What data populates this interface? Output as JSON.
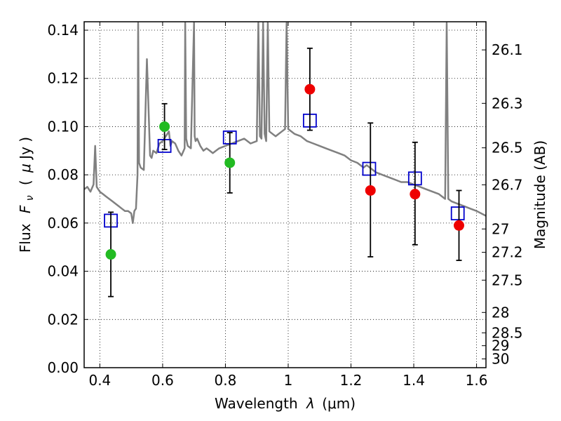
{
  "chart_data": {
    "type": "scatter",
    "title": "",
    "xlabel": "Wavelength  λ (μm)",
    "ylabel": "Flux  F_ν  ( μJy )",
    "ylabel_parts": {
      "flux": "Flux",
      "fnu_main": "F",
      "fnu_sub": "ν",
      "paren_open": "(",
      "mu": "μ",
      "jy": "Jy )"
    },
    "xlabel_parts": {
      "text": "Wavelength",
      "lambda": "λ",
      "unit": "(μm)"
    },
    "y2label": "Magnitude (AB)",
    "xlim": [
      0.35,
      1.63
    ],
    "ylim": [
      0.0,
      0.1435
    ],
    "grid": true,
    "x_ticks": [
      0.4,
      0.6,
      0.8,
      1.0,
      1.2,
      1.4,
      1.6
    ],
    "x_tick_labels": [
      "0.4",
      "0.6",
      "0.8",
      "1",
      "1.2",
      "1.4",
      "1.6"
    ],
    "y_ticks": [
      0.0,
      0.02,
      0.04,
      0.06,
      0.08,
      0.1,
      0.12,
      0.14
    ],
    "y_tick_labels": [
      "0.00",
      "0.02",
      "0.04",
      "0.06",
      "0.08",
      "0.10",
      "0.12",
      "0.14"
    ],
    "y2_tick_labels": [
      "26.1",
      "26.3",
      "26.5",
      "26.7",
      "27",
      "27.2",
      "27.5",
      "28",
      "28.5",
      "29",
      "30"
    ],
    "colors": {
      "template": "#808080",
      "green": "#22bb22",
      "red": "#ee0000",
      "model_box": "#0000cc",
      "errorbar": "#000000",
      "grid": "#000000"
    },
    "series": [
      {
        "marker": "circle-green",
        "points": [
          {
            "x": 0.435,
            "y": 0.047,
            "yerr_low": 0.0295,
            "yerr_high": 0.0645
          },
          {
            "x": 0.606,
            "y": 0.1,
            "yerr_low": 0.0905,
            "yerr_high": 0.1095
          },
          {
            "x": 0.814,
            "y": 0.085,
            "yerr_low": 0.0725,
            "yerr_high": 0.0975
          }
        ]
      },
      {
        "marker": "circle-red",
        "points": [
          {
            "x": 1.069,
            "y": 0.1155,
            "yerr_low": 0.0985,
            "yerr_high": 0.1325
          },
          {
            "x": 1.262,
            "y": 0.0735,
            "yerr_low": 0.046,
            "yerr_high": 0.1015
          },
          {
            "x": 1.404,
            "y": 0.072,
            "yerr_low": 0.051,
            "yerr_high": 0.0935
          },
          {
            "x": 1.544,
            "y": 0.059,
            "yerr_low": 0.0445,
            "yerr_high": 0.0735
          }
        ]
      },
      {
        "marker": "square-open-blue",
        "points": [
          {
            "x": 0.435,
            "y": 0.061
          },
          {
            "x": 0.606,
            "y": 0.092
          },
          {
            "x": 0.814,
            "y": 0.0955
          },
          {
            "x": 1.069,
            "y": 0.1025
          },
          {
            "x": 1.258,
            "y": 0.0825
          },
          {
            "x": 1.404,
            "y": 0.0785
          },
          {
            "x": 1.54,
            "y": 0.064
          }
        ]
      },
      {
        "marker": "line-template",
        "x": [
          0.35,
          0.36,
          0.37,
          0.38,
          0.385,
          0.39,
          0.395,
          0.4,
          0.41,
          0.42,
          0.43,
          0.44,
          0.45,
          0.46,
          0.47,
          0.48,
          0.49,
          0.5,
          0.505,
          0.51,
          0.515,
          0.52,
          0.522,
          0.525,
          0.53,
          0.54,
          0.55,
          0.56,
          0.565,
          0.57,
          0.58,
          0.59,
          0.6,
          0.61,
          0.62,
          0.625,
          0.63,
          0.64,
          0.65,
          0.66,
          0.67,
          0.672,
          0.675,
          0.68,
          0.69,
          0.7,
          0.702,
          0.705,
          0.71,
          0.72,
          0.73,
          0.74,
          0.75,
          0.76,
          0.77,
          0.78,
          0.8,
          0.82,
          0.84,
          0.86,
          0.88,
          0.9,
          0.905,
          0.91,
          0.915,
          0.92,
          0.925,
          0.93,
          0.935,
          0.94,
          0.95,
          0.96,
          0.97,
          0.98,
          0.99,
          0.995,
          1.0,
          1.02,
          1.04,
          1.06,
          1.08,
          1.1,
          1.12,
          1.14,
          1.16,
          1.18,
          1.2,
          1.22,
          1.24,
          1.25,
          1.26,
          1.28,
          1.3,
          1.32,
          1.34,
          1.36,
          1.38,
          1.4,
          1.42,
          1.44,
          1.46,
          1.48,
          1.5,
          1.505,
          1.51,
          1.52,
          1.54,
          1.56,
          1.58,
          1.6,
          1.63
        ],
        "y": [
          0.074,
          0.075,
          0.073,
          0.076,
          0.092,
          0.075,
          0.074,
          0.073,
          0.072,
          0.071,
          0.07,
          0.069,
          0.068,
          0.067,
          0.066,
          0.065,
          0.065,
          0.064,
          0.06,
          0.065,
          0.066,
          0.08,
          0.143,
          0.085,
          0.083,
          0.082,
          0.128,
          0.088,
          0.087,
          0.09,
          0.089,
          0.093,
          0.094,
          0.096,
          0.098,
          0.092,
          0.094,
          0.093,
          0.09,
          0.088,
          0.091,
          0.143,
          0.095,
          0.092,
          0.091,
          0.143,
          0.096,
          0.094,
          0.095,
          0.092,
          0.09,
          0.091,
          0.09,
          0.089,
          0.09,
          0.091,
          0.092,
          0.093,
          0.094,
          0.095,
          0.093,
          0.094,
          0.143,
          0.096,
          0.095,
          0.143,
          0.097,
          0.094,
          0.143,
          0.098,
          0.097,
          0.096,
          0.097,
          0.098,
          0.099,
          0.143,
          0.099,
          0.097,
          0.096,
          0.094,
          0.093,
          0.092,
          0.091,
          0.09,
          0.089,
          0.088,
          0.086,
          0.085,
          0.083,
          0.084,
          0.083,
          0.081,
          0.08,
          0.079,
          0.078,
          0.077,
          0.077,
          0.076,
          0.075,
          0.074,
          0.073,
          0.072,
          0.07,
          0.143,
          0.07,
          0.069,
          0.068,
          0.067,
          0.066,
          0.065,
          0.063
        ]
      }
    ]
  }
}
